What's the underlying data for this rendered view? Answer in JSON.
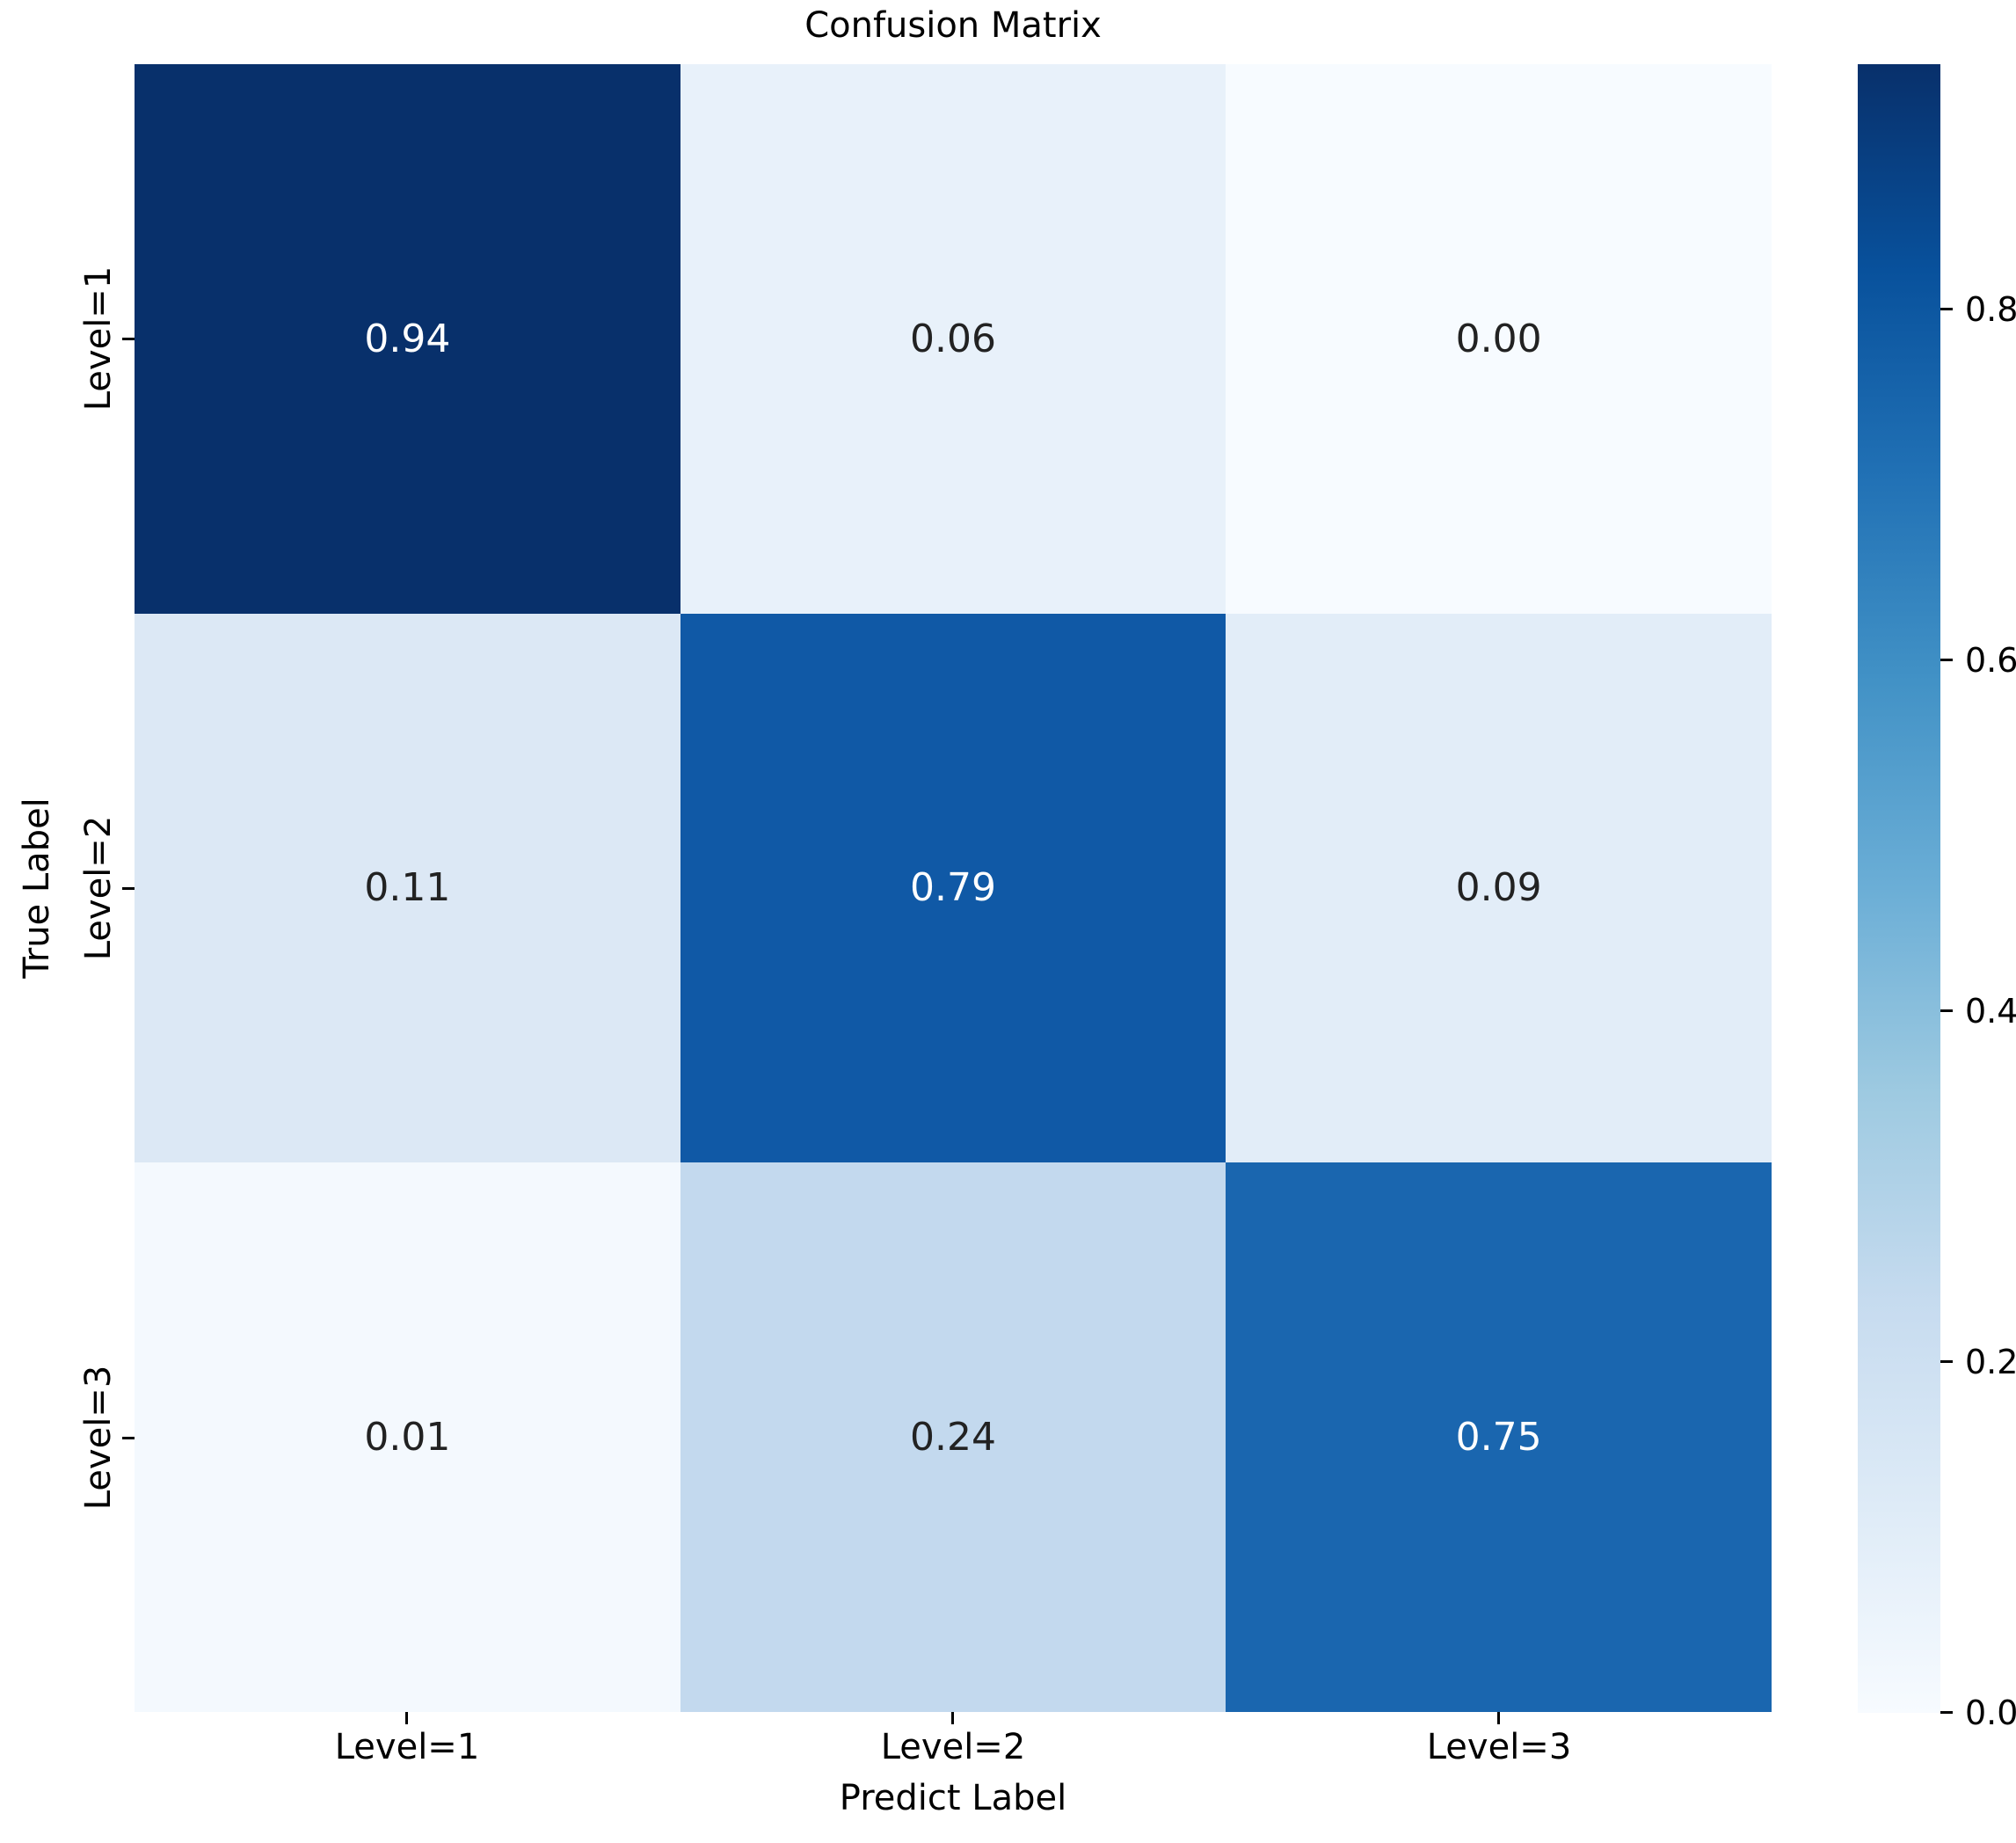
{
  "title": "Confusion Matrix",
  "axes": {
    "x_label": "Predict Label",
    "y_label": "True Label",
    "x_ticks": [
      "Level=1",
      "Level=2",
      "Level=3"
    ],
    "y_ticks": [
      "Level=1",
      "Level=2",
      "Level=3"
    ]
  },
  "matrix": {
    "cells": [
      {
        "label": "0.94",
        "bg": "#08306b",
        "fg": "#ffffff"
      },
      {
        "label": "0.06",
        "bg": "#e8f1fa",
        "fg": "#222222"
      },
      {
        "label": "0.00",
        "bg": "#f7fbff",
        "fg": "#222222"
      },
      {
        "label": "0.11",
        "bg": "#dce8f5",
        "fg": "#222222"
      },
      {
        "label": "0.79",
        "bg": "#1059a6",
        "fg": "#ffffff"
      },
      {
        "label": "0.09",
        "bg": "#e2edf8",
        "fg": "#222222"
      },
      {
        "label": "0.01",
        "bg": "#f4f9fe",
        "fg": "#222222"
      },
      {
        "label": "0.24",
        "bg": "#c3d9ee",
        "fg": "#222222"
      },
      {
        "label": "0.75",
        "bg": "#1a66af",
        "fg": "#ffffff"
      }
    ]
  },
  "colorbar": {
    "ticks": [
      "0.8",
      "0.6",
      "0.4",
      "0.2",
      "0.0"
    ],
    "gradient_top": "#08306b",
    "gradient_bottom": "#f7fbff",
    "vmin": 0.0,
    "vmax": 0.94
  },
  "chart_data": {
    "type": "heatmap",
    "title": "Confusion Matrix",
    "xlabel": "Predict Label",
    "ylabel": "True Label",
    "categories_x": [
      "Level=1",
      "Level=2",
      "Level=3"
    ],
    "categories_y": [
      "Level=1",
      "Level=2",
      "Level=3"
    ],
    "values": [
      [
        0.94,
        0.06,
        0.0
      ],
      [
        0.11,
        0.79,
        0.09
      ],
      [
        0.01,
        0.24,
        0.75
      ]
    ],
    "colormap": "Blues",
    "colorbar_ticks": [
      0.0,
      0.2,
      0.4,
      0.6,
      0.8
    ],
    "colorbar_range": [
      0.0,
      0.94
    ],
    "legend_position": "right-colorbar",
    "grid": false,
    "annotations": "cell values, 2 decimals"
  }
}
